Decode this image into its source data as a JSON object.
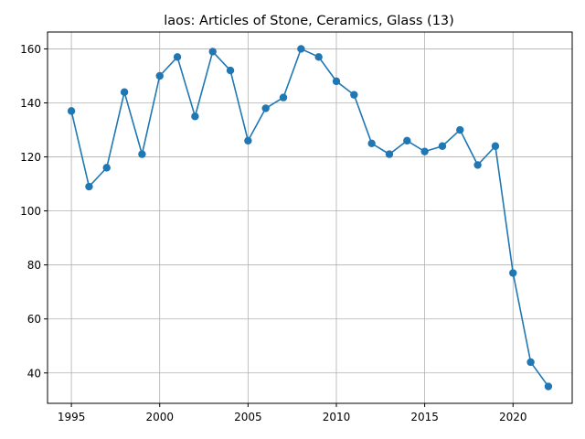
{
  "chart_data": {
    "type": "line",
    "title": "laos: Articles of Stone, Ceramics, Glass (13)",
    "xlabel": "",
    "ylabel": "",
    "xlim": [
      1993.65,
      2023.35
    ],
    "ylim": [
      28.75,
      166.25
    ],
    "xticks": [
      1995,
      2000,
      2005,
      2010,
      2015,
      2020
    ],
    "yticks": [
      40,
      60,
      80,
      100,
      120,
      140,
      160
    ],
    "grid": true,
    "colors": {
      "series": "#1f77b4"
    },
    "x": [
      1995,
      1996,
      1997,
      1998,
      1999,
      2000,
      2001,
      2002,
      2003,
      2004,
      2005,
      2006,
      2007,
      2008,
      2009,
      2010,
      2011,
      2012,
      2013,
      2014,
      2015,
      2016,
      2017,
      2018,
      2019,
      2020,
      2021,
      2022
    ],
    "series": [
      {
        "values": [
          137,
          109,
          116,
          144,
          121,
          150,
          157,
          135,
          159,
          152,
          126,
          138,
          142,
          160,
          157,
          148,
          143,
          125,
          121,
          126,
          122,
          124,
          130,
          117,
          124,
          77,
          44,
          35
        ]
      }
    ]
  }
}
